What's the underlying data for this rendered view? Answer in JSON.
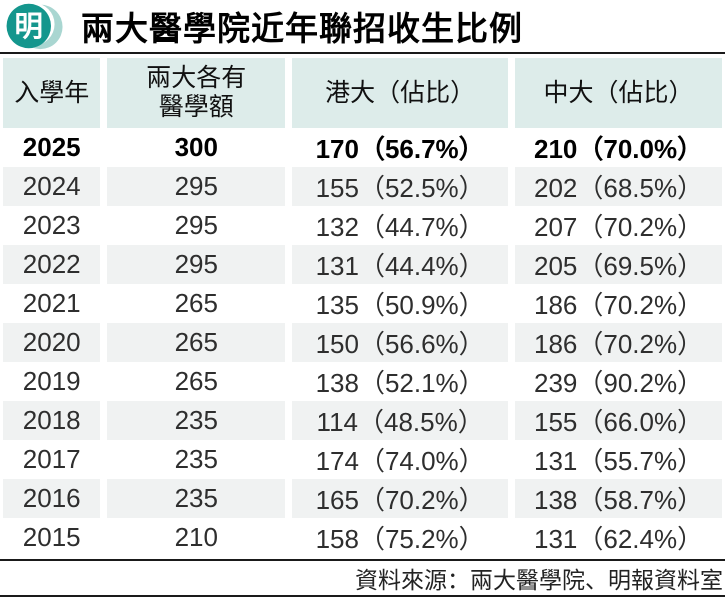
{
  "brand": {
    "logo_char": "明",
    "teal": "#14968d",
    "teal_light": "#a9d6d1"
  },
  "header": {
    "title": "兩大醫學院近年聯招收生比例"
  },
  "colors": {
    "header_cell_bg": "#ddecea",
    "alt_row_bg": "#f0f2f2",
    "rule": "#1a1a1a"
  },
  "chart_data": {
    "type": "table",
    "title": "兩大醫學院近年聯招收生比例",
    "columns": [
      "入學年",
      "兩大各有醫學額",
      "港大（佔比）",
      "中大（佔比）"
    ],
    "rows": [
      [
        "2025",
        "300",
        "170（56.7%）",
        "210（70.0%）"
      ],
      [
        "2024",
        "295",
        "155（52.5%）",
        "202（68.5%）"
      ],
      [
        "2023",
        "295",
        "132（44.7%）",
        "207（70.2%）"
      ],
      [
        "2022",
        "295",
        "131（44.4%）",
        "205（69.5%）"
      ],
      [
        "2021",
        "265",
        "135（50.9%）",
        "186（70.2%）"
      ],
      [
        "2020",
        "265",
        "150（56.6%）",
        "186（70.2%）"
      ],
      [
        "2019",
        "265",
        "138（52.1%）",
        "239（90.2%）"
      ],
      [
        "2018",
        "235",
        "114（48.5%）",
        "155（66.0%）"
      ],
      [
        "2017",
        "235",
        "174（74.0%）",
        "131（55.7%）"
      ],
      [
        "2016",
        "235",
        "165（70.2%）",
        "138（58.7%）"
      ],
      [
        "2015",
        "210",
        "158（75.2%）",
        "131（62.4%）"
      ]
    ],
    "highlight_row": 0,
    "source": "資料來源：兩大醫學院、明報資料室"
  }
}
